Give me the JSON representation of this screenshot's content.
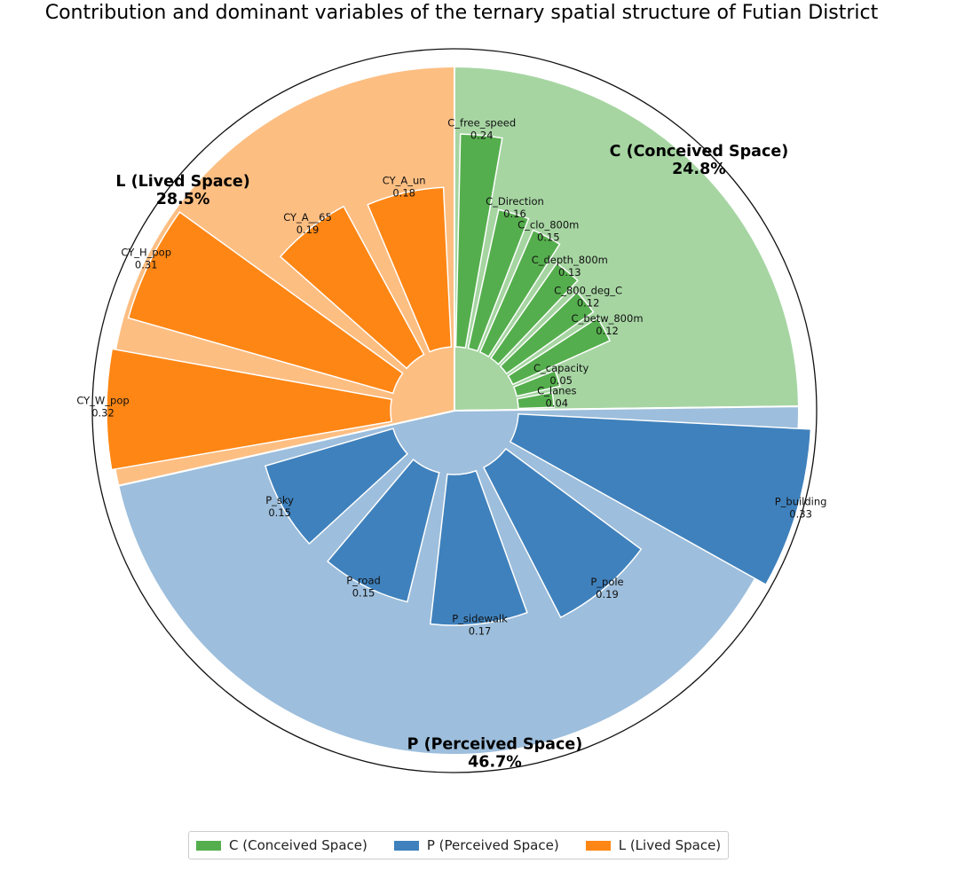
{
  "chart_data": {
    "type": "pie",
    "title": "Contribution and dominant variables of the ternary spatial structure of Futian District",
    "sectors": [
      {
        "key": "C",
        "label": "C (Conceived Space)",
        "percent_label": "24.8%",
        "share": 24.8,
        "color_light": "#a6d5a2",
        "color_dark": "#55ae4d",
        "bars": [
          {
            "name": "C_free_speed",
            "value": 0.24,
            "value_label": "0.24"
          },
          {
            "name": "C_Direction",
            "value": 0.16,
            "value_label": "0.16"
          },
          {
            "name": "C_clo_800m",
            "value": 0.15,
            "value_label": "0.15"
          },
          {
            "name": "C_depth_800m",
            "value": 0.13,
            "value_label": "0.13"
          },
          {
            "name": "C_800_deg_C",
            "value": 0.12,
            "value_label": "0.12"
          },
          {
            "name": "C_betw_800m",
            "value": 0.12,
            "value_label": "0.12"
          },
          {
            "name": "C_capacity",
            "value": 0.05,
            "value_label": "0.05"
          },
          {
            "name": "C_lanes",
            "value": 0.04,
            "value_label": "0.04"
          }
        ]
      },
      {
        "key": "P",
        "label": "P (Perceived Space)",
        "percent_label": "46.7%",
        "share": 46.7,
        "color_light": "#9dbedc",
        "color_dark": "#3f81bc",
        "bars": [
          {
            "name": "P_building",
            "value": 0.33,
            "value_label": "0.33"
          },
          {
            "name": "P_pole",
            "value": 0.19,
            "value_label": "0.19"
          },
          {
            "name": "P_sidewalk",
            "value": 0.17,
            "value_label": "0.17"
          },
          {
            "name": "P_road",
            "value": 0.15,
            "value_label": "0.15"
          },
          {
            "name": "P_sky",
            "value": 0.15,
            "value_label": "0.15"
          }
        ]
      },
      {
        "key": "L",
        "label": "L (Lived Space)",
        "percent_label": "28.5%",
        "share": 28.5,
        "color_light": "#fdbe82",
        "color_dark": "#fe8614",
        "bars": [
          {
            "name": "CY_W_pop",
            "value": 0.32,
            "value_label": "0.32"
          },
          {
            "name": "CY_H_pop",
            "value": 0.31,
            "value_label": "0.31"
          },
          {
            "name": "CY_A__65",
            "value": 0.19,
            "value_label": "0.19"
          },
          {
            "name": "CY_A_un",
            "value": 0.18,
            "value_label": "0.18"
          }
        ]
      }
    ],
    "legend": {
      "placement": "bottom-center",
      "items": [
        {
          "label": "C (Conceived Space)",
          "color": "#55ae4d"
        },
        {
          "label": "P (Perceived Space)",
          "color": "#3f81bc"
        },
        {
          "label": "L (Lived Space)",
          "color": "#fe8614"
        }
      ]
    }
  }
}
